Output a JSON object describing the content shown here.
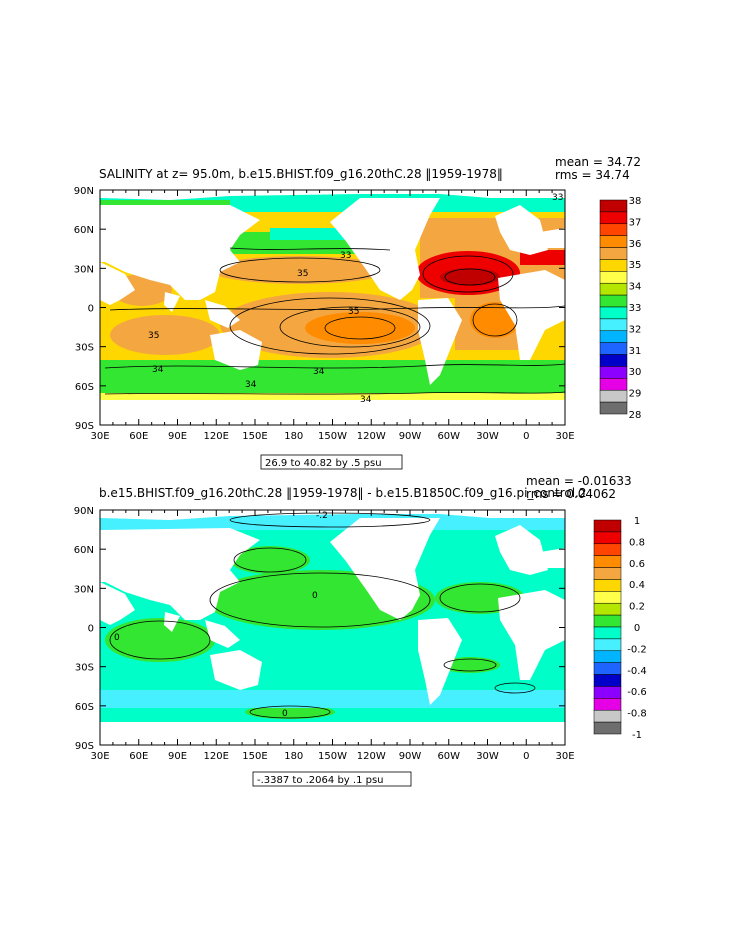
{
  "chart_data": [
    {
      "type": "heatmap",
      "title": "SALINITY at z=  95.0m, b.e15.BHIST.f09_g16.20thC.28 ‖1959-1978‖",
      "stats": {
        "mean": "mean = 34.72",
        "rms": "rms = 34.74"
      },
      "contour_note": "26.9 to 40.82 by .5 psu",
      "x_ticks": [
        "30E",
        "60E",
        "90E",
        "120E",
        "150E",
        "180",
        "150W",
        "120W",
        "90W",
        "60W",
        "30W",
        "0",
        "30E"
      ],
      "y_ticks": [
        "90N",
        "60N",
        "30N",
        "0",
        "30S",
        "60S",
        "90S"
      ],
      "colorbar": {
        "labels": [
          "38",
          "37",
          "36",
          "35",
          "34",
          "33",
          "32",
          "31",
          "30",
          "29",
          "28"
        ],
        "colors": [
          "#c00000",
          "#ee0000",
          "#ff4500",
          "#ff8c00",
          "#f4a740",
          "#ffd700",
          "#ffff4a",
          "#b4e600",
          "#32e632",
          "#00ffc8",
          "#46f0ff",
          "#00b4ff",
          "#1e64ff",
          "#0000c8",
          "#8c00ff",
          "#e600e6",
          "#c8c8c8",
          "#6e6e6e"
        ]
      },
      "contour_labels": [
        "35",
        "35",
        "35",
        "34",
        "34",
        "34",
        "34",
        "33",
        "33"
      ],
      "basin_values": {
        "arctic": 33.0,
        "north_pacific": 33.5,
        "subtropical_north_pacific": 35.0,
        "equatorial_pacific": 34.8,
        "south_pacific_gyre": 35.9,
        "indian_ocean": 35.0,
        "north_atlantic_gyre": 37.2,
        "south_atlantic": 36.3,
        "southern_ocean": 34.0,
        "antarctic_margin": 34.4
      }
    },
    {
      "type": "heatmap",
      "title": "b.e15.BHIST.f09_g16.20thC.28 ‖1959-1978‖ - b.e15.B1850C.f09_g16.pi_control.2",
      "stats": {
        "mean": "mean = -0.01633",
        "rms": "rms = 0.04062"
      },
      "contour_note": "-.3387 to .2064 by .1 psu",
      "x_ticks": [
        "30E",
        "60E",
        "90E",
        "120E",
        "150E",
        "180",
        "150W",
        "120W",
        "90W",
        "60W",
        "30W",
        "0",
        "30E"
      ],
      "y_ticks": [
        "90N",
        "60N",
        "30N",
        "0",
        "30S",
        "60S",
        "90S"
      ],
      "colorbar": {
        "labels": [
          "1",
          "0.8",
          "0.6",
          "0.4",
          "0.2",
          "0",
          "-0.2",
          "-0.4",
          "-0.6",
          "-0.8",
          "-1"
        ],
        "colors": [
          "#c00000",
          "#ee0000",
          "#ff4500",
          "#ff8c00",
          "#f4a740",
          "#ffd700",
          "#ffff4a",
          "#b4e600",
          "#32e632",
          "#00ffc8",
          "#46f0ff",
          "#00b4ff",
          "#1e64ff",
          "#0000c8",
          "#8c00ff",
          "#e600e6",
          "#c8c8c8",
          "#6e6e6e"
        ]
      },
      "contour_labels": [
        "-.2",
        "0",
        "0",
        "0"
      ],
      "basin_values": {
        "arctic": -0.2,
        "pacific": 0.05,
        "indian_ocean": 0.05,
        "atlantic": 0.05,
        "southern_ocean": -0.05
      }
    }
  ],
  "colors": {
    "land": "#ffffff",
    "frame": "#000000",
    "sal_33": "#00ffc8",
    "sal_34": "#32e632",
    "sal_35": "#ffd700",
    "sal_355": "#ffff4a",
    "sal_36": "#f4a740",
    "sal_37": "#ff8c00",
    "sal_38": "#ee0000",
    "diff_0": "#00ffc8",
    "diff_02": "#32e632",
    "diff_m02": "#46f0ff"
  }
}
